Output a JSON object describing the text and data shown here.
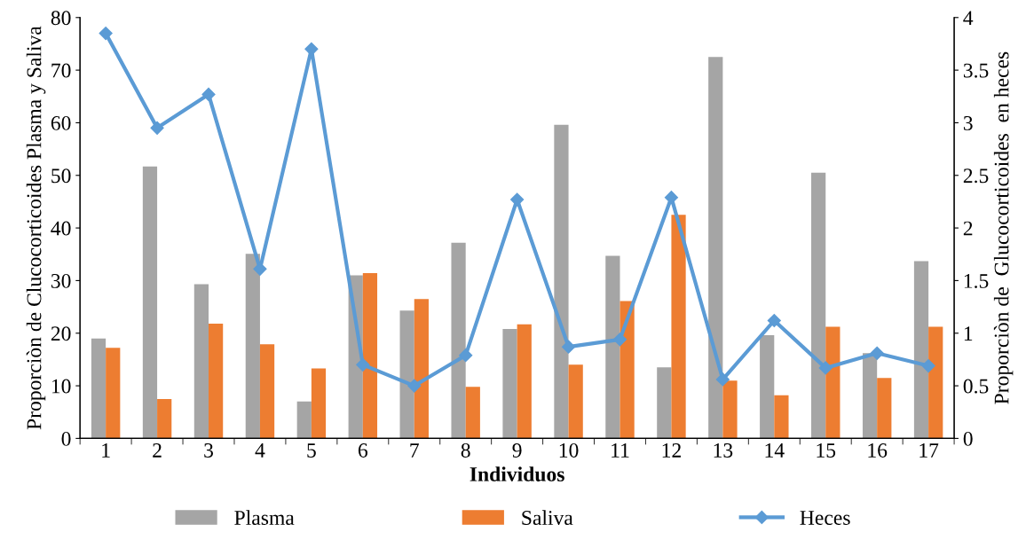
{
  "chart_data": {
    "type": "bar",
    "xlabel": "Individuos",
    "ylabel": "Proporciòn de Clucocorticoides Plasma y Saliva",
    "y2label": "Proporciòn de  Glucocorticoides  en heces",
    "categories": [
      "1",
      "2",
      "3",
      "4",
      "5",
      "6",
      "7",
      "8",
      "9",
      "10",
      "11",
      "12",
      "13",
      "14",
      "15",
      "16",
      "17"
    ],
    "series": [
      {
        "name": "Plasma",
        "color": "#a5a5a5",
        "values": [
          19,
          51.7,
          29.3,
          35.1,
          7,
          31,
          24.3,
          37.2,
          20.8,
          59.6,
          34.7,
          13.5,
          72.5,
          19.6,
          50.5,
          16.2,
          33.7
        ]
      },
      {
        "name": "Saliva",
        "color": "#ed7d31",
        "values": [
          17.2,
          7.5,
          21.8,
          17.9,
          13.3,
          31.4,
          26.5,
          9.8,
          21.7,
          14,
          26.1,
          42.5,
          11,
          8.2,
          21.2,
          11.5,
          21.2
        ]
      },
      {
        "name": "Heces",
        "color": "#5b9bd5",
        "type": "line",
        "axis": "y2",
        "marker": "diamond",
        "values": [
          3.85,
          2.95,
          3.27,
          1.61,
          3.7,
          0.7,
          0.5,
          0.79,
          2.27,
          0.87,
          0.94,
          2.29,
          0.56,
          1.12,
          0.67,
          0.81,
          0.69
        ]
      }
    ],
    "ylim": [
      0,
      80
    ],
    "yticks": [
      0,
      10,
      20,
      30,
      40,
      50,
      60,
      70,
      80
    ],
    "y2lim": [
      0,
      4
    ],
    "y2ticks": [
      0,
      0.5,
      1,
      1.5,
      2,
      2.5,
      3,
      3.5,
      4
    ],
    "legend": "bottom",
    "grid": false
  }
}
